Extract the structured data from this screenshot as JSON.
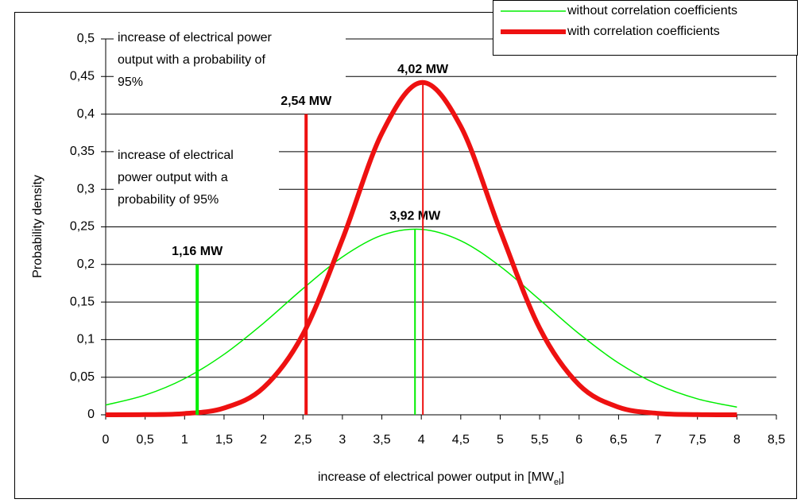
{
  "chart_data": {
    "type": "line",
    "x_label_parts": [
      "increase of electrical power output in [MW",
      "el",
      "]"
    ],
    "y_label": "Probability density",
    "x": [
      0,
      0.5,
      1,
      1.5,
      2,
      2.5,
      3,
      3.5,
      4,
      4.5,
      5,
      5.5,
      6,
      6.5,
      7,
      7.5,
      8
    ],
    "series": [
      {
        "name": "without correlation coefficients",
        "color": "#00ee00",
        "width": 1.5,
        "values": [
          0.013,
          0.0262,
          0.0481,
          0.0804,
          0.1218,
          0.1678,
          0.21,
          0.2388,
          0.2467,
          0.2316,
          0.1975,
          0.1531,
          0.1078,
          0.0689,
          0.0401,
          0.0212,
          0.0102
        ]
      },
      {
        "name": "with correlation coefficients",
        "color": "#ee1111",
        "width": 6,
        "values": [
          0,
          0.0002,
          0.0016,
          0.009,
          0.0361,
          0.1071,
          0.2334,
          0.3744,
          0.442,
          0.3837,
          0.2451,
          0.1152,
          0.0398,
          0.0101,
          0.0019,
          0.0003,
          0
        ]
      }
    ],
    "markers": [
      {
        "x": 1.16,
        "top": 0.2,
        "label": "1,16 MW",
        "color": "#00ee00",
        "width": 4
      },
      {
        "x": 3.92,
        "top": 0.247,
        "label": "3,92 MW",
        "color": "#00ee00",
        "width": 2
      },
      {
        "x": 2.54,
        "top": 0.4,
        "label": "2,54 MW",
        "color": "#ee1111",
        "width": 4
      },
      {
        "x": 4.02,
        "top": 0.442,
        "label": "4,02 MW",
        "color": "#ee1111",
        "width": 2
      }
    ],
    "annotations": [
      {
        "lines": [
          "increase of electrical power",
          "output with a probability of",
          "95%"
        ],
        "color": "#ee1111"
      },
      {
        "lines": [
          "increase of electrical",
          "power output with a",
          "probability of 95%"
        ],
        "color": "#00ee00"
      }
    ],
    "xlim": [
      0,
      8.5
    ],
    "xticks": [
      0,
      {
        "value": 0.5,
        "label": "0,5"
      },
      1,
      {
        "value": 1.5,
        "label": "1,5"
      },
      2,
      {
        "value": 2.5,
        "label": "2,5"
      },
      3,
      {
        "value": 3.5,
        "label": "3,5"
      },
      4,
      {
        "value": 4.5,
        "label": "4,5"
      },
      5,
      {
        "value": 5.5,
        "label": "5,5"
      },
      6,
      {
        "value": 6.5,
        "label": "6,5"
      },
      7,
      {
        "value": 7.5,
        "label": "7,5"
      },
      8,
      {
        "value": 8.5,
        "label": "8,5"
      }
    ],
    "ylim": [
      0,
      0.5
    ],
    "yticks": [
      0,
      {
        "value": 0.05,
        "label": "0,05"
      },
      {
        "value": 0.1,
        "label": "0,1"
      },
      {
        "value": 0.15,
        "label": "0,15"
      },
      {
        "value": 0.2,
        "label": "0,2"
      },
      {
        "value": 0.25,
        "label": "0,25"
      },
      {
        "value": 0.3,
        "label": "0,3"
      },
      {
        "value": 0.35,
        "label": "0,35"
      },
      {
        "value": 0.4,
        "label": "0,4"
      },
      {
        "value": 0.45,
        "label": "0,45"
      },
      {
        "value": 0.5,
        "label": "0,5"
      }
    ],
    "grid": true,
    "legend": "top-right"
  }
}
